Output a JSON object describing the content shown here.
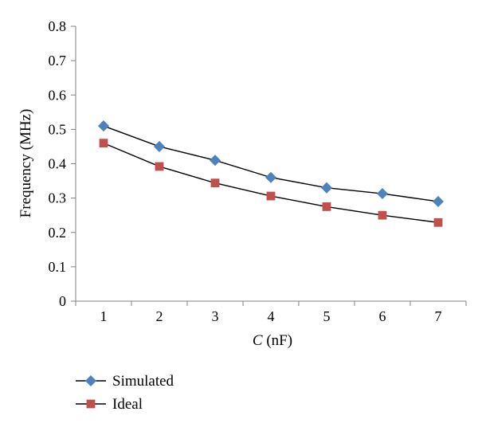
{
  "chart_data": {
    "type": "line",
    "title": "",
    "xlabel": {
      "italic": "C",
      "rest": " (nF)"
    },
    "ylabel": "Frequency (MHz)",
    "x": [
      1,
      2,
      3,
      4,
      5,
      6,
      7
    ],
    "xticks": [
      "1",
      "2",
      "3",
      "4",
      "5",
      "6",
      "7"
    ],
    "ylim": [
      0,
      0.8
    ],
    "yticks": [
      "0",
      "0.1",
      "0.2",
      "0.3",
      "0.4",
      "0.5",
      "0.6",
      "0.7",
      "0.8"
    ],
    "yticks_values": [
      0,
      0.1,
      0.2,
      0.3,
      0.4,
      0.5,
      0.6,
      0.7,
      0.8
    ],
    "grid": false,
    "legend_position": "bottom-left",
    "series": [
      {
        "name": "Simulated",
        "marker": "diamond",
        "color": "#4F81BD",
        "values": [
          0.51,
          0.45,
          0.41,
          0.36,
          0.33,
          0.313,
          0.29
        ]
      },
      {
        "name": "Ideal",
        "marker": "square",
        "color": "#C0504D",
        "values": [
          0.46,
          0.392,
          0.344,
          0.306,
          0.275,
          0.25,
          0.229
        ]
      }
    ]
  }
}
